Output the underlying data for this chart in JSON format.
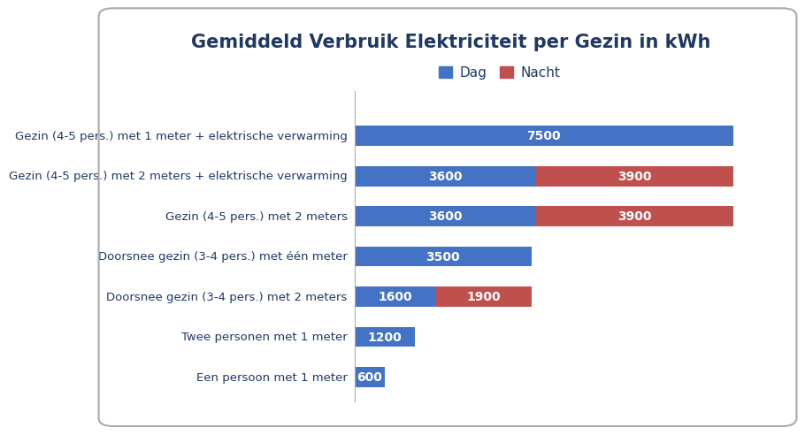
{
  "title": "Gemiddeld Verbruik Elektriciteit per Gezin in kWh",
  "categories": [
    "Een persoon met 1 meter",
    "Twee personen met 1 meter",
    "Doorsnee gezin (3-4 pers.) met 2 meters",
    "Doorsnee gezin (3-4 pers.) met één meter",
    "Gezin (4-5 pers.) met 2 meters",
    "Gezin (4-5 pers.) met 2 meters + elektrische verwarming",
    "Gezin (4-5 pers.) met 1 meter + elektrische verwarming"
  ],
  "dag_values": [
    600,
    1200,
    1600,
    3500,
    3600,
    3600,
    7500
  ],
  "nacht_values": [
    0,
    0,
    1900,
    0,
    3900,
    3900,
    0
  ],
  "dag_color": "#4472C4",
  "nacht_color": "#C0504D",
  "label_color_dag": "white",
  "label_color_nacht": "white",
  "bar_height": 0.5,
  "xlim": [
    0,
    8200
  ],
  "background_color": "#FFFFFF",
  "border_color": "#AAAAAA",
  "title_fontsize": 15,
  "label_fontsize": 10,
  "tick_fontsize": 9.5,
  "legend_dag": "Dag",
  "legend_nacht": "Nacht",
  "y_label_colors": [
    "#1F3864",
    "#1F3864",
    "#1F3864",
    "#1F3864",
    "#1F3864",
    "#1F3864",
    "#1F3864"
  ]
}
